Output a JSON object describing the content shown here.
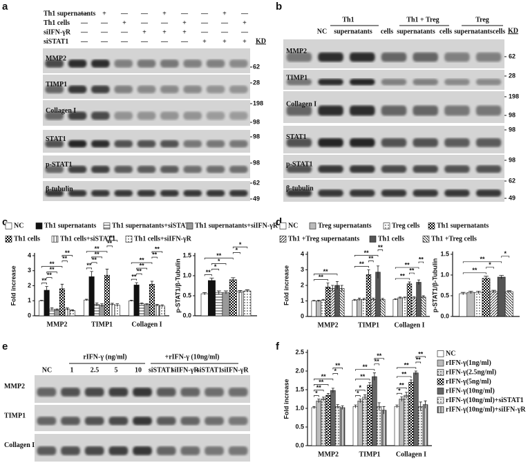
{
  "panel_labels": [
    "a",
    "b",
    "c",
    "d",
    "e",
    "f"
  ],
  "blots": {
    "a": {
      "kd_header": "KD",
      "conditions": [
        {
          "label": "Th1 supernatants",
          "signs": [
            "—",
            "+",
            "—",
            "—",
            "+",
            "—",
            "—",
            "+",
            "—"
          ]
        },
        {
          "label": "Th1 cells",
          "signs": [
            "—",
            "—",
            "+",
            "—",
            "—",
            "+",
            "—",
            "—",
            "+"
          ]
        },
        {
          "label": "siIFN-γR",
          "signs": [
            "—",
            "—",
            "—",
            "+",
            "+",
            "+",
            "—",
            "—",
            "—"
          ]
        },
        {
          "label": "siSTAT1",
          "signs": [
            "—",
            "—",
            "—",
            "—",
            "—",
            "—",
            "+",
            "+",
            "+"
          ]
        }
      ],
      "rows": [
        {
          "label": "MMP2",
          "kd": [
            62
          ]
        },
        {
          "label": "TIMP1",
          "kd": [
            28
          ]
        },
        {
          "label": "Collagen I",
          "kd": [
            198,
            98
          ]
        },
        {
          "label": "STAT1",
          "kd": [
            98
          ]
        },
        {
          "label": "p-STAT1",
          "kd": [
            98
          ]
        },
        {
          "label": "β-tubulin",
          "kd": [
            62,
            49
          ]
        }
      ]
    },
    "b": {
      "kd_header": "KD",
      "groups": [
        "Th1",
        "Th1 + Treg",
        "Treg"
      ],
      "lanes": [
        "NC",
        "supernatants",
        "cells",
        "supernatants",
        "cells",
        "supernatants",
        "cells"
      ],
      "rows": [
        {
          "label": "MMP2",
          "kd": [
            62
          ]
        },
        {
          "label": "TIMP1",
          "kd": [
            28
          ]
        },
        {
          "label": "Collagen I",
          "kd": [
            198,
            98
          ]
        },
        {
          "label": "STAT1",
          "kd": [
            98
          ]
        },
        {
          "label": "p-STAT1",
          "kd": [
            98
          ]
        },
        {
          "label": "β-tubulin",
          "kd": [
            62,
            49
          ]
        }
      ]
    },
    "e": {
      "groups": [
        "rIFN-γ (ng/ml)",
        "+rIFN-γ (10ng/ml)"
      ],
      "lanes": [
        "NC",
        "1",
        "2.5",
        "5",
        "10",
        "siSTAT1",
        "siIFN-γR",
        "siSTAT1",
        "siIFN-γR"
      ],
      "rows": [
        {
          "label": "MMP2"
        },
        {
          "label": "TIMP1"
        },
        {
          "label": "Collagen I"
        }
      ]
    }
  },
  "chart_data": [
    {
      "type": "bar",
      "ylabel": "Fold increase",
      "categories": [
        "MMP2",
        "TIMP1",
        "Collagen I"
      ],
      "ylim": [
        0,
        4
      ],
      "yticks": [
        0,
        1,
        2,
        3,
        4
      ],
      "series": [
        {
          "name": "NC",
          "color": "#ffffff",
          "pattern": "none",
          "values": [
            1,
            1.05,
            1
          ],
          "errors": [
            0.03,
            0.05,
            0.04
          ]
        },
        {
          "name": "Th1 supernatants",
          "color": "#111111",
          "pattern": "none",
          "values": [
            1.7,
            2.6,
            2.05
          ],
          "errors": [
            0.25,
            0.35,
            0.15
          ]
        },
        {
          "name": "Th1 supernatants+siSTAT1",
          "color": "#ffffff",
          "pattern": "hlines",
          "values": [
            0.45,
            0.75,
            0.8
          ],
          "errors": [
            0.08,
            0.1,
            0.05
          ]
        },
        {
          "name": "Th1 supernatants+siIFN-γR",
          "color": "#ffffff",
          "pattern": "hlines-dense",
          "values": [
            0.4,
            0.7,
            0.75
          ],
          "errors": [
            0.06,
            0.1,
            0.05
          ]
        },
        {
          "name": "Th1 cells",
          "color": "#ffffff",
          "pattern": "checker",
          "values": [
            1.8,
            2.7,
            2.1
          ],
          "errors": [
            0.3,
            0.4,
            0.2
          ]
        },
        {
          "name": "Th1 cells+siSTAT1",
          "color": "#ffffff",
          "pattern": "vlines",
          "values": [
            0.45,
            0.75,
            0.7
          ],
          "errors": [
            0.07,
            0.08,
            0.06
          ]
        },
        {
          "name": "Th1 cells+siIFN-γR",
          "color": "#ffffff",
          "pattern": "dots",
          "values": [
            0.35,
            0.7,
            0.65
          ],
          "errors": [
            0.05,
            0.1,
            0.08
          ]
        }
      ],
      "significance": [
        {
          "label": "**",
          "group": 0,
          "a": 0,
          "b": 1
        },
        {
          "label": "**",
          "group": 0,
          "a": 1,
          "b": 2
        },
        {
          "label": "**",
          "group": 0,
          "a": 1,
          "b": 3
        },
        {
          "label": "**",
          "group": 0,
          "a": 0,
          "b": 4
        },
        {
          "label": "**",
          "group": 0,
          "a": 4,
          "b": 5
        },
        {
          "label": "**",
          "group": 0,
          "a": 4,
          "b": 6
        },
        {
          "label": "**",
          "group": 1,
          "a": 0,
          "b": 1
        },
        {
          "label": "**",
          "group": 1,
          "a": 1,
          "b": 2
        },
        {
          "label": "**",
          "group": 1,
          "a": 1,
          "b": 3
        },
        {
          "label": "**",
          "group": 1,
          "a": 0,
          "b": 4
        },
        {
          "label": "**",
          "group": 1,
          "a": 4,
          "b": 5
        },
        {
          "label": "**",
          "group": 1,
          "a": 4,
          "b": 6
        },
        {
          "label": "**",
          "group": 2,
          "a": 0,
          "b": 1
        },
        {
          "label": "**",
          "group": 2,
          "a": 1,
          "b": 2
        },
        {
          "label": "**",
          "group": 2,
          "a": 1,
          "b": 3
        },
        {
          "label": "**",
          "group": 2,
          "a": 0,
          "b": 4
        },
        {
          "label": "**",
          "group": 2,
          "a": 4,
          "b": 5
        },
        {
          "label": "**",
          "group": 2,
          "a": 4,
          "b": 6
        }
      ]
    },
    {
      "type": "bar",
      "ylabel": "p-STAT1/β-Tubulin",
      "categories": [
        null
      ],
      "ylim": [
        0,
        1.5
      ],
      "yticks": [
        {
          "value": 0,
          "label": "0.0"
        },
        {
          "value": 0.5,
          "label": "0.5"
        },
        {
          "value": 1,
          "label": "1.0"
        },
        {
          "value": 1.5,
          "label": "1.5"
        }
      ],
      "series": [
        {
          "color": "#ffffff",
          "pattern": "none",
          "values": [
            0.55
          ],
          "errors": [
            0.03
          ]
        },
        {
          "color": "#111111",
          "pattern": "none",
          "values": [
            0.88
          ],
          "errors": [
            0.06
          ]
        },
        {
          "color": "#ffffff",
          "pattern": "hlines",
          "values": [
            0.58
          ],
          "errors": [
            0.04
          ]
        },
        {
          "color": "#ffffff",
          "pattern": "hlines-dense",
          "values": [
            0.58
          ],
          "errors": [
            0.04
          ]
        },
        {
          "color": "#ffffff",
          "pattern": "checker",
          "values": [
            0.9
          ],
          "errors": [
            0.05
          ]
        },
        {
          "color": "#ffffff",
          "pattern": "vlines",
          "values": [
            0.6
          ],
          "errors": [
            0.03
          ]
        },
        {
          "color": "#ffffff",
          "pattern": "dots",
          "values": [
            0.62
          ],
          "errors": [
            0.03
          ]
        }
      ],
      "significance": [
        {
          "label": "**",
          "group": 0,
          "a": 0,
          "b": 1
        },
        {
          "label": "*",
          "group": 0,
          "a": 1,
          "b": 2
        },
        {
          "label": "*",
          "group": 0,
          "a": 1,
          "b": 3
        },
        {
          "label": "**",
          "group": 0,
          "a": 0,
          "b": 4
        },
        {
          "label": "*",
          "group": 0,
          "a": 4,
          "b": 5
        },
        {
          "label": "*",
          "group": 0,
          "a": 4,
          "b": 6
        }
      ]
    },
    {
      "type": "bar",
      "ylabel": "Fold increase",
      "categories": [
        "MMP2",
        "TIMP1",
        "Collagen I"
      ],
      "ylim": [
        0,
        4
      ],
      "yticks": [
        0,
        1,
        2,
        3,
        4
      ],
      "series": [
        {
          "name": "NC",
          "color": "#ffffff",
          "pattern": "none",
          "values": [
            1,
            1.05,
            1.1
          ],
          "errors": [
            0.03,
            0.05,
            0.04
          ]
        },
        {
          "name": "Treg supernatants",
          "color": "#bbbbbb",
          "pattern": "none",
          "values": [
            1,
            1.1,
            1.2
          ],
          "errors": [
            0.05,
            0.08,
            0.05
          ]
        },
        {
          "name": "Treg cells",
          "color": "#ffffff",
          "pattern": "dots",
          "values": [
            1.05,
            1.1,
            1.2
          ],
          "errors": [
            0.05,
            0.06,
            0.05
          ]
        },
        {
          "name": "Th1 supernatants",
          "color": "#ffffff",
          "pattern": "checker",
          "values": [
            1.9,
            2.7,
            2.1
          ],
          "errors": [
            0.25,
            0.3,
            0.12
          ]
        },
        {
          "name": "Th1 +Treg supernatants",
          "color": "#ffffff",
          "pattern": "diag",
          "values": [
            1.8,
            1.1,
            1.2
          ],
          "errors": [
            0.2,
            0.08,
            0.06
          ]
        },
        {
          "name": "Th1 cells",
          "color": "#555555",
          "pattern": "none",
          "values": [
            2,
            2.85,
            2.2
          ],
          "errors": [
            0.25,
            0.4,
            0.15
          ]
        },
        {
          "name": "Th1 +Treg cells",
          "color": "#ffffff",
          "pattern": "diag-rev",
          "values": [
            1.8,
            1.1,
            1.25
          ],
          "errors": [
            0.2,
            0.06,
            0.08
          ]
        }
      ],
      "significance": [
        {
          "label": "**",
          "group": 0,
          "a": 0,
          "b": 3
        },
        {
          "label": "**",
          "group": 0,
          "a": 0,
          "b": 5
        },
        {
          "label": "**",
          "group": 1,
          "a": 0,
          "b": 3
        },
        {
          "label": "**",
          "group": 1,
          "a": 3,
          "b": 4
        },
        {
          "label": "**",
          "group": 1,
          "a": 0,
          "b": 5
        },
        {
          "label": "**",
          "group": 1,
          "a": 5,
          "b": 6
        },
        {
          "label": "**",
          "group": 2,
          "a": 0,
          "b": 3
        },
        {
          "label": "**",
          "group": 2,
          "a": 3,
          "b": 4
        },
        {
          "label": "**",
          "group": 2,
          "a": 0,
          "b": 5
        },
        {
          "label": "**",
          "group": 2,
          "a": 5,
          "b": 6
        }
      ]
    },
    {
      "type": "bar",
      "ylabel": "p-STAT1/β-Tubulin",
      "categories": [
        null
      ],
      "ylim": [
        0,
        1.5
      ],
      "yticks": [
        {
          "value": 0,
          "label": "0.0"
        },
        {
          "value": 0.5,
          "label": "0.5"
        },
        {
          "value": 1,
          "label": "1.0"
        },
        {
          "value": 1.5,
          "label": "1.5"
        }
      ],
      "series": [
        {
          "color": "#ffffff",
          "pattern": "none",
          "values": [
            0.55
          ],
          "errors": [
            0.03
          ]
        },
        {
          "color": "#bbbbbb",
          "pattern": "none",
          "values": [
            0.58
          ],
          "errors": [
            0.03
          ]
        },
        {
          "color": "#ffffff",
          "pattern": "dots",
          "values": [
            0.58
          ],
          "errors": [
            0.03
          ]
        },
        {
          "color": "#ffffff",
          "pattern": "checker",
          "values": [
            0.92
          ],
          "errors": [
            0.05
          ]
        },
        {
          "color": "#ffffff",
          "pattern": "diag",
          "values": [
            0.6
          ],
          "errors": [
            0.03
          ]
        },
        {
          "color": "#555555",
          "pattern": "none",
          "values": [
            0.95
          ],
          "errors": [
            0.04
          ]
        },
        {
          "color": "#ffffff",
          "pattern": "diag-rev",
          "values": [
            0.6
          ],
          "errors": [
            0.02
          ]
        }
      ],
      "significance": [
        {
          "label": "**",
          "group": 0,
          "a": 0,
          "b": 3
        },
        {
          "label": "*",
          "group": 0,
          "a": 3,
          "b": 4
        },
        {
          "label": "**",
          "group": 0,
          "a": 0,
          "b": 5
        },
        {
          "label": "*",
          "group": 0,
          "a": 5,
          "b": 6
        }
      ]
    },
    {
      "type": "bar",
      "ylabel": "Fold increase",
      "categories": [
        "MMP2",
        "TIMP1",
        "Collagen I"
      ],
      "ylim": [
        0,
        2.5
      ],
      "yticks": [
        {
          "value": 0,
          "label": "0.0"
        },
        {
          "value": 0.5,
          "label": "0.5"
        },
        {
          "value": 1,
          "label": "1.0"
        },
        {
          "value": 1.5,
          "label": "1.5"
        },
        {
          "value": 2,
          "label": "2.0"
        },
        {
          "value": 2.5,
          "label": "2.5"
        }
      ],
      "series": [
        {
          "name": "NC",
          "color": "#ffffff",
          "pattern": "none",
          "values": [
            1.02,
            1.05,
            1.05
          ],
          "errors": [
            0.03,
            0.04,
            0.04
          ]
        },
        {
          "name": "rIFN-γ(1ng/ml)",
          "color": "#bbbbbb",
          "pattern": "none",
          "values": [
            1.2,
            1.2,
            1.25
          ],
          "errors": [
            0.05,
            0.05,
            0.06
          ]
        },
        {
          "name": "rIFN-γ(2.5ng/ml)",
          "color": "#dddddd",
          "pattern": "dots",
          "values": [
            1.25,
            1.3,
            1.35
          ],
          "errors": [
            0.05,
            0.06,
            0.08
          ]
        },
        {
          "name": "rIFN-γ(5ng/ml)",
          "color": "#ffffff",
          "pattern": "checker",
          "values": [
            1.35,
            1.62,
            1.7
          ],
          "errors": [
            0.05,
            0.07,
            0.06
          ]
        },
        {
          "name": "rIFN-γ(10ng/ml)",
          "color": "#666666",
          "pattern": "none",
          "values": [
            1.48,
            1.85,
            1.95
          ],
          "errors": [
            0.06,
            0.1,
            0.05
          ]
        },
        {
          "name": "rIFN-γ(10ng/ml)+siSTAT1",
          "color": "#eeeeee",
          "pattern": "dots",
          "values": [
            1.05,
            1.05,
            1.05
          ],
          "errors": [
            0.05,
            0.1,
            0.12
          ]
        },
        {
          "name": "rIFN-γ(10ng/ml)+siIFN-γR",
          "color": "#cccccc",
          "pattern": "vlines",
          "values": [
            1.02,
            0.95,
            1.1
          ],
          "errors": [
            0.05,
            0.1,
            0.1
          ]
        }
      ],
      "significance": [
        {
          "label": "*",
          "group": 0,
          "a": 0,
          "b": 1
        },
        {
          "label": "**",
          "group": 0,
          "a": 0,
          "b": 2
        },
        {
          "label": "**",
          "group": 0,
          "a": 0,
          "b": 3
        },
        {
          "label": "**",
          "group": 0,
          "a": 0,
          "b": 4
        },
        {
          "label": "*",
          "group": 0,
          "a": 4,
          "b": 5
        },
        {
          "label": "**",
          "group": 0,
          "a": 4,
          "b": 6
        },
        {
          "label": "*",
          "group": 1,
          "a": 0,
          "b": 1
        },
        {
          "label": "*",
          "group": 1,
          "a": 0,
          "b": 2
        },
        {
          "label": "**",
          "group": 1,
          "a": 0,
          "b": 3
        },
        {
          "label": "**",
          "group": 1,
          "a": 0,
          "b": 4
        },
        {
          "label": "**",
          "group": 1,
          "a": 4,
          "b": 5
        },
        {
          "label": "**",
          "group": 1,
          "a": 4,
          "b": 6
        },
        {
          "label": "*",
          "group": 2,
          "a": 0,
          "b": 1
        },
        {
          "label": "**",
          "group": 2,
          "a": 0,
          "b": 2
        },
        {
          "label": "**",
          "group": 2,
          "a": 0,
          "b": 3
        },
        {
          "label": "**",
          "group": 2,
          "a": 0,
          "b": 4
        },
        {
          "label": "**",
          "group": 2,
          "a": 4,
          "b": 5
        },
        {
          "label": "**",
          "group": 2,
          "a": 4,
          "b": 6
        }
      ]
    }
  ]
}
